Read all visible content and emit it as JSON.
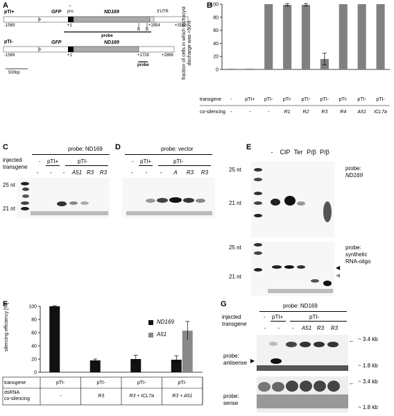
{
  "panelA": {
    "label": "A",
    "constructs": [
      {
        "name": "pTI+",
        "gene_left": "GFP",
        "pro": "pro",
        "gene_main": "ND169",
        "utr": "3'UTR",
        "coord_left": "-1569",
        "coord_start": "+1",
        "coord_mid": "+1954",
        "coord_right": "+3168",
        "site1": "B",
        "site2": "B",
        "probe": "probe"
      },
      {
        "name": "pTI-",
        "gene_left": "GFP",
        "gene_main": "ND169",
        "coord_left": "-1569",
        "coord_start": "+1",
        "coord_mid": "+1728",
        "coord_right": "+2896",
        "probe": "probe"
      }
    ],
    "scale": "500bp"
  },
  "panelB": {
    "label": "B",
    "chart_data": {
      "type": "bar",
      "ylabel": "fraction of cells in which trichocyst discharge was <50%",
      "ylim": [
        0,
        100
      ],
      "yticks": [
        0,
        20,
        40,
        60,
        80,
        100
      ],
      "categories": [
        "1",
        "2",
        "3",
        "4",
        "5",
        "6",
        "7",
        "8",
        "9"
      ],
      "values": [
        0,
        0,
        100,
        99,
        99,
        16,
        100,
        100,
        100
      ],
      "errors": [
        0,
        0,
        0,
        2,
        2,
        9,
        0,
        0,
        0
      ],
      "row_transgene_label": "transgene",
      "row_cosilencing_label": "co-silencing",
      "transgene": [
        "-",
        "pTI+",
        "pTI-",
        "pTI-",
        "pTI-",
        "pTI-",
        "pTI-",
        "pTI-",
        "pTI-"
      ],
      "cosilencing": [
        "-",
        "-",
        "-",
        "R1",
        "R2",
        "R3",
        "R4",
        "A51",
        "ICL7a"
      ]
    }
  },
  "panelC": {
    "label": "C",
    "probe_title": "probe: ND169",
    "injected": "injected",
    "transgene": "transgene",
    "groups": [
      "-",
      "pTI+",
      "pTI-"
    ],
    "lanes": [
      "-",
      "-",
      "-",
      "A51",
      "R3",
      "R3"
    ],
    "marker_top": "25 nt",
    "marker_bottom": "21 nt"
  },
  "panelD": {
    "label": "D",
    "probe_title": "probe: vector",
    "groups": [
      "-",
      "pTI+",
      "pTI-"
    ],
    "lanes": [
      "-",
      "-",
      "-",
      "A",
      "R3",
      "R3"
    ]
  },
  "panelE": {
    "label": "E",
    "lanes": [
      "-",
      "CIP",
      "Ter",
      "P/β",
      "P/β"
    ],
    "marker_top1": "25 nt",
    "marker_bot1": "21 nt",
    "marker_top2": "25 nt",
    "marker_bot2": "21 nt",
    "probe1_a": "probe:",
    "probe1_b": "ND169",
    "probe2_a": "probe:",
    "probe2_b": "synthetic",
    "probe2_c": "RNA-oligo"
  },
  "panelF": {
    "label": "F",
    "chart_data": {
      "type": "bar",
      "ylabel": "silencing efficiency [%]",
      "ylim": [
        0,
        100
      ],
      "yticks": [
        0,
        20,
        40,
        60,
        80,
        100
      ],
      "categories": [
        "pTI- / -",
        "pTI- / R3",
        "pTI- / R3 + ICL7a",
        "pTI- / R3 + A51"
      ],
      "series": [
        {
          "name": "ND169",
          "color": "#111111",
          "values": [
            100,
            18,
            20,
            19
          ],
          "errors": [
            1,
            2,
            6,
            6
          ]
        },
        {
          "name": "A51",
          "color": "#888888",
          "values": [
            0,
            0,
            0,
            63
          ],
          "errors": [
            0,
            0,
            0,
            14
          ]
        }
      ],
      "row_transgene_label": "transgene",
      "row_dsrna_label": "dsRNA",
      "row_cosilencing_label": "co-silencing",
      "transgene": [
        "pTI-",
        "pTI-",
        "pTI-",
        "pTI-"
      ],
      "cosilencing": [
        "-",
        "R3",
        "R3 + ICL7a",
        "R3 + A51"
      ]
    }
  },
  "panelG": {
    "label": "G",
    "probe_title": "probe: ND169",
    "injected": "injected",
    "transgene": "transgene",
    "groups": [
      "-",
      "pTI+",
      "pTI-"
    ],
    "lanes": [
      "-",
      "-",
      "-",
      "A51",
      "R3",
      "R3"
    ],
    "probe_antisense": "probe:",
    "antisense": "antisense",
    "probe_sense": "probe:",
    "sense": "sense",
    "size_top": "~ 3.4 kb",
    "size_bot": "~ 1.8 kb",
    "size_top2": "~ 3.4 kb",
    "size_bot2": "~ 1.8 kb"
  }
}
